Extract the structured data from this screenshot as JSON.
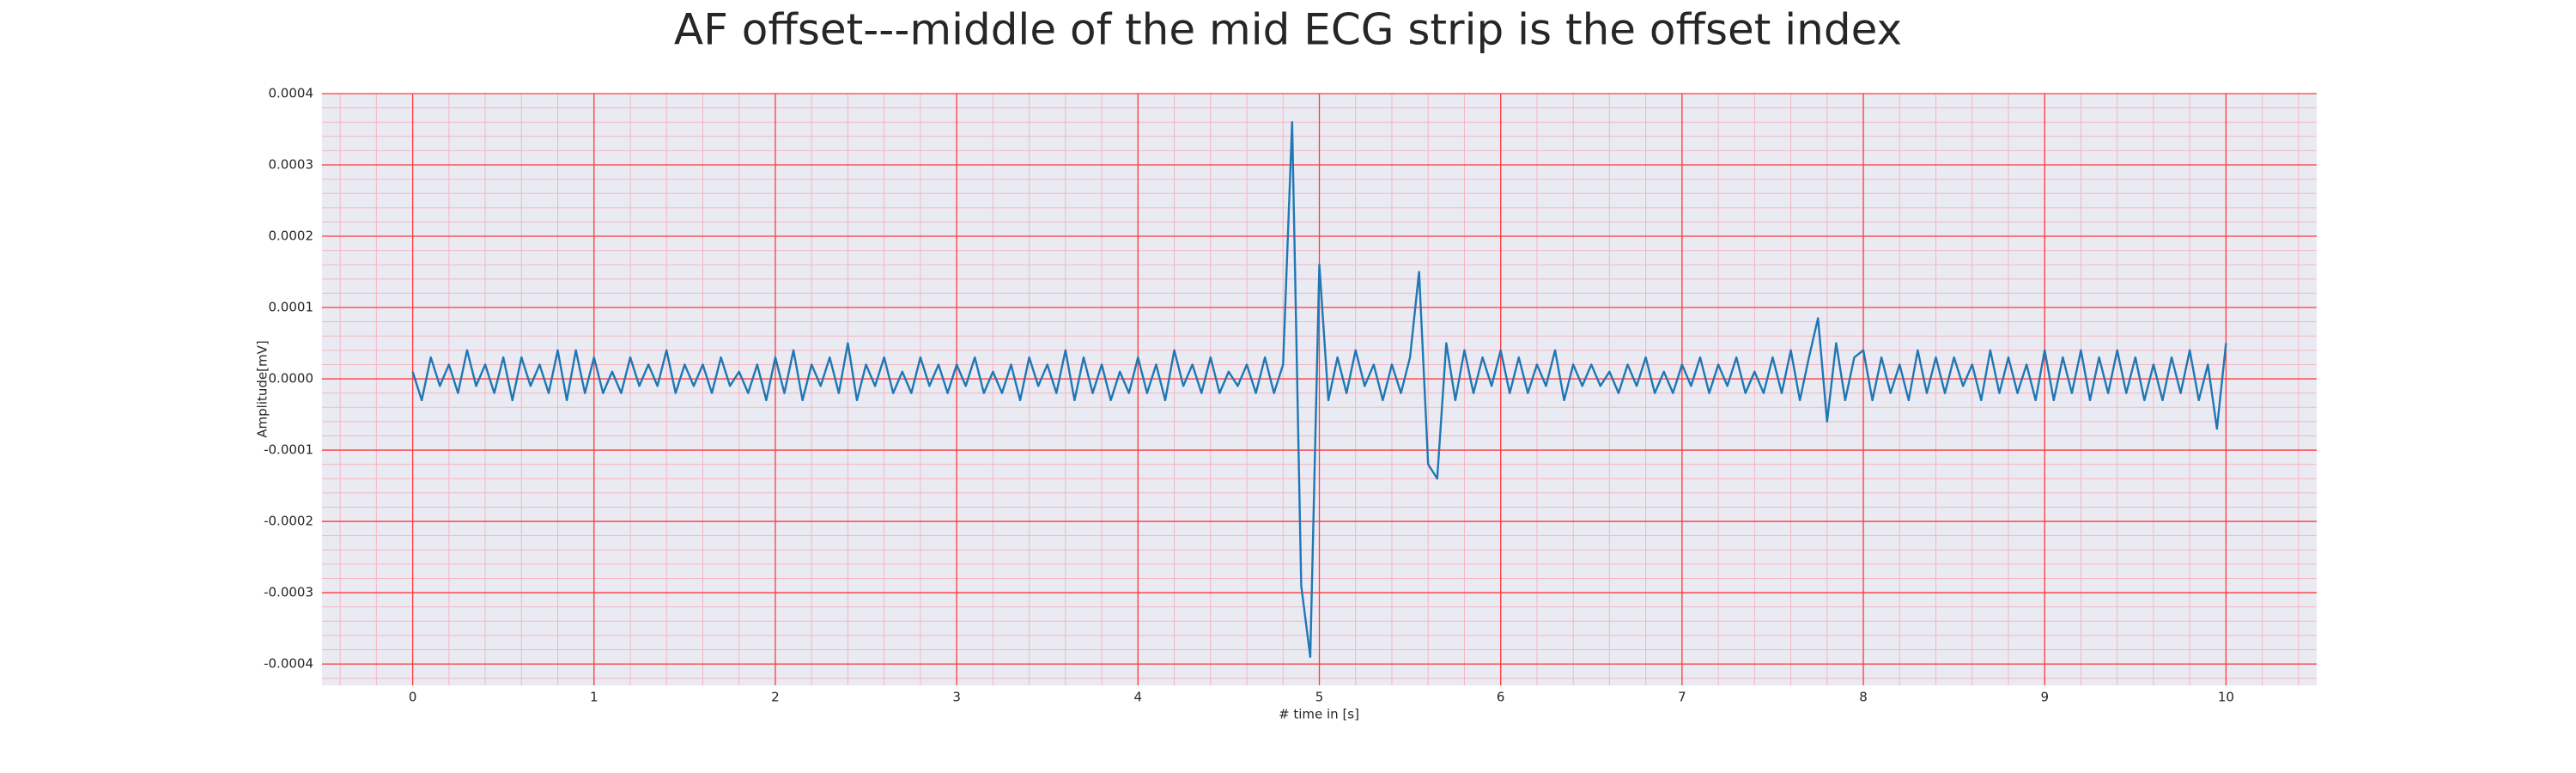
{
  "chart_data": {
    "type": "line",
    "title": "AF offset---middle of the mid ECG strip is the offset index",
    "x_label": "# time in [s]",
    "y_label": "Amplitude[mV]",
    "xlim": [
      -0.5,
      10.5
    ],
    "ylim": [
      -0.00043,
      0.0004
    ],
    "xticks": [
      0,
      1,
      2,
      3,
      4,
      5,
      6,
      7,
      8,
      9,
      10
    ],
    "yticks": [
      -0.0004,
      -0.0003,
      -0.0002,
      -0.0001,
      {
        "value": 0,
        "label": "0.0000"
      },
      0.0001,
      0.0002,
      0.0003,
      0.0004
    ],
    "grid": true,
    "minor_grid": true,
    "grid_color": "#ff3b3b",
    "minor_grid_color": "#f3b6c4",
    "background": "#eaeaf2",
    "x": [
      0,
      0.05,
      0.1,
      0.15,
      0.2,
      0.25,
      0.3,
      0.35,
      0.4,
      0.45,
      0.5,
      0.55,
      0.6,
      0.65,
      0.7,
      0.75,
      0.8,
      0.85,
      0.9,
      0.95,
      1,
      1.05,
      1.1,
      1.15,
      1.2,
      1.25,
      1.3,
      1.35,
      1.4,
      1.45,
      1.5,
      1.55,
      1.6,
      1.65,
      1.7,
      1.75,
      1.8,
      1.85,
      1.9,
      1.95,
      2,
      2.05,
      2.1,
      2.15,
      2.2,
      2.25,
      2.3,
      2.35,
      2.4,
      2.45,
      2.5,
      2.55,
      2.6,
      2.65,
      2.7,
      2.75,
      2.8,
      2.85,
      2.9,
      2.95,
      3,
      3.05,
      3.1,
      3.15,
      3.2,
      3.25,
      3.3,
      3.35,
      3.4,
      3.45,
      3.5,
      3.55,
      3.6,
      3.65,
      3.7,
      3.75,
      3.8,
      3.85,
      3.9,
      3.95,
      4,
      4.05,
      4.1,
      4.15,
      4.2,
      4.25,
      4.3,
      4.35,
      4.4,
      4.45,
      4.5,
      4.55,
      4.6,
      4.65,
      4.7,
      4.75,
      4.8,
      4.85,
      4.9,
      4.95,
      5,
      5.05,
      5.1,
      5.15,
      5.2,
      5.25,
      5.3,
      5.35,
      5.4,
      5.45,
      5.5,
      5.55,
      5.6,
      5.65,
      5.7,
      5.75,
      5.8,
      5.85,
      5.9,
      5.95,
      6,
      6.05,
      6.1,
      6.15,
      6.2,
      6.25,
      6.3,
      6.35,
      6.4,
      6.45,
      6.5,
      6.55,
      6.6,
      6.65,
      6.7,
      6.75,
      6.8,
      6.85,
      6.9,
      6.95,
      7,
      7.05,
      7.1,
      7.15,
      7.2,
      7.25,
      7.3,
      7.35,
      7.4,
      7.45,
      7.5,
      7.55,
      7.6,
      7.65,
      7.7,
      7.75,
      7.8,
      7.85,
      7.9,
      7.95,
      8,
      8.05,
      8.1,
      8.15,
      8.2,
      8.25,
      8.3,
      8.35,
      8.4,
      8.45,
      8.5,
      8.55,
      8.6,
      8.65,
      8.7,
      8.75,
      8.8,
      8.85,
      8.9,
      8.95,
      9,
      9.05,
      9.1,
      9.15,
      9.2,
      9.25,
      9.3,
      9.35,
      9.4,
      9.45,
      9.5,
      9.55,
      9.6,
      9.65,
      9.7,
      9.75,
      9.8,
      9.85,
      9.9,
      9.95,
      10
    ],
    "series": [
      {
        "color": "#1f77b4",
        "values": [
          1e-05,
          -3e-05,
          3e-05,
          -1e-05,
          2e-05,
          -2e-05,
          4e-05,
          -1e-05,
          2e-05,
          -2e-05,
          3e-05,
          -3e-05,
          3e-05,
          -1e-05,
          2e-05,
          -2e-05,
          4e-05,
          -3e-05,
          4e-05,
          -2e-05,
          3e-05,
          -2e-05,
          1e-05,
          -2e-05,
          3e-05,
          -1e-05,
          2e-05,
          -1e-05,
          4e-05,
          -2e-05,
          2e-05,
          -1e-05,
          2e-05,
          -2e-05,
          3e-05,
          -1e-05,
          1e-05,
          -2e-05,
          2e-05,
          -3e-05,
          3e-05,
          -2e-05,
          4e-05,
          -3e-05,
          2e-05,
          -1e-05,
          3e-05,
          -2e-05,
          5e-05,
          -3e-05,
          2e-05,
          -1e-05,
          3e-05,
          -2e-05,
          1e-05,
          -2e-05,
          3e-05,
          -1e-05,
          2e-05,
          -2e-05,
          2e-05,
          -1e-05,
          3e-05,
          -2e-05,
          1e-05,
          -2e-05,
          2e-05,
          -3e-05,
          3e-05,
          -1e-05,
          2e-05,
          -2e-05,
          4e-05,
          -3e-05,
          3e-05,
          -2e-05,
          2e-05,
          -3e-05,
          1e-05,
          -2e-05,
          3e-05,
          -2e-05,
          2e-05,
          -3e-05,
          4e-05,
          -1e-05,
          2e-05,
          -2e-05,
          3e-05,
          -2e-05,
          1e-05,
          -1e-05,
          2e-05,
          -2e-05,
          3e-05,
          -2e-05,
          2e-05,
          0.00036,
          -0.00029,
          -0.00039,
          0.00016,
          -3e-05,
          3e-05,
          -2e-05,
          4e-05,
          -1e-05,
          2e-05,
          -3e-05,
          2e-05,
          -2e-05,
          3e-05,
          0.00015,
          -0.00012,
          -0.00014,
          5e-05,
          -3e-05,
          4e-05,
          -2e-05,
          3e-05,
          -1e-05,
          4e-05,
          -2e-05,
          3e-05,
          -2e-05,
          2e-05,
          -1e-05,
          4e-05,
          -3e-05,
          2e-05,
          -1e-05,
          2e-05,
          -1e-05,
          1e-05,
          -2e-05,
          2e-05,
          -1e-05,
          3e-05,
          -2e-05,
          1e-05,
          -2e-05,
          2e-05,
          -1e-05,
          3e-05,
          -2e-05,
          2e-05,
          -1e-05,
          3e-05,
          -2e-05,
          1e-05,
          -2e-05,
          3e-05,
          -2e-05,
          4e-05,
          -3e-05,
          3e-05,
          8.5e-05,
          -6e-05,
          5e-05,
          -3e-05,
          3e-05,
          4e-05,
          -3e-05,
          3e-05,
          -2e-05,
          2e-05,
          -3e-05,
          4e-05,
          -2e-05,
          3e-05,
          -2e-05,
          3e-05,
          -1e-05,
          2e-05,
          -3e-05,
          4e-05,
          -2e-05,
          3e-05,
          -2e-05,
          2e-05,
          -3e-05,
          4e-05,
          -3e-05,
          3e-05,
          -2e-05,
          4e-05,
          -3e-05,
          3e-05,
          -2e-05,
          4e-05,
          -2e-05,
          3e-05,
          -3e-05,
          2e-05,
          -3e-05,
          3e-05,
          -2e-05,
          4e-05,
          -3e-05,
          2e-05,
          -7e-05,
          5e-05
        ]
      }
    ]
  }
}
